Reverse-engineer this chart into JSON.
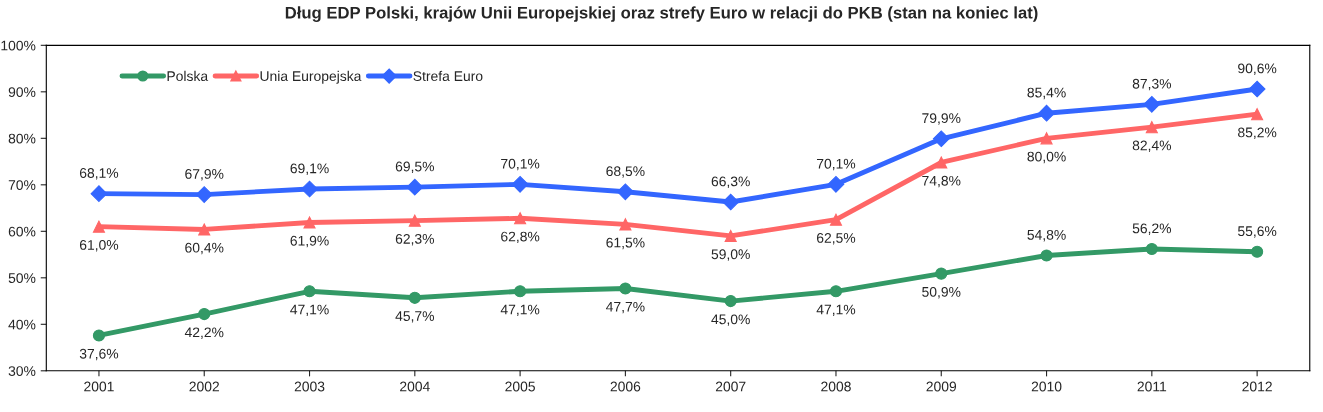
{
  "chart_data": {
    "type": "line",
    "title": "Dług EDP Polski, krajów Unii Europejskiej oraz strefy Euro w relacji do PKB (stan na koniec lat)",
    "categories": [
      "2001",
      "2002",
      "2003",
      "2004",
      "2005",
      "2006",
      "2007",
      "2008",
      "2009",
      "2010",
      "2011",
      "2012"
    ],
    "series": [
      {
        "name": "Polska",
        "color": "#339966",
        "marker": "circle",
        "values": [
          37.6,
          42.2,
          47.1,
          45.7,
          47.1,
          47.7,
          45.0,
          47.1,
          50.9,
          54.8,
          56.2,
          55.6
        ],
        "value_labels": [
          "37,6%",
          "42,2%",
          "47,1%",
          "45,7%",
          "47,1%",
          "47,7%",
          "45,0%",
          "47,1%",
          "50,9%",
          "54,8%",
          "56,2%",
          "55,6%"
        ]
      },
      {
        "name": "Unia Europejska",
        "color": "#ff6666",
        "marker": "triangle",
        "values": [
          61.0,
          60.4,
          61.9,
          62.3,
          62.8,
          61.5,
          59.0,
          62.5,
          74.8,
          80.0,
          82.4,
          85.2
        ],
        "value_labels": [
          "61,0%",
          "60,4%",
          "61,9%",
          "62,3%",
          "62,8%",
          "61,5%",
          "59,0%",
          "62,5%",
          "74,8%",
          "80,0%",
          "82,4%",
          "85,2%"
        ]
      },
      {
        "name": "Strefa Euro",
        "color": "#3366ff",
        "marker": "diamond",
        "values": [
          68.1,
          67.9,
          69.1,
          69.5,
          70.1,
          68.5,
          66.3,
          70.1,
          79.9,
          85.4,
          87.3,
          90.6
        ],
        "value_labels": [
          "68,1%",
          "67,9%",
          "69,1%",
          "69,5%",
          "70,1%",
          "68,5%",
          "66,3%",
          "70,1%",
          "79,9%",
          "85,4%",
          "87,3%",
          "90,6%"
        ]
      }
    ],
    "ylim": [
      30,
      100
    ],
    "yticks": [
      {
        "value": 30,
        "label": "30%"
      },
      {
        "value": 40,
        "label": "40%"
      },
      {
        "value": 50,
        "label": "50%"
      },
      {
        "value": 60,
        "label": "60%"
      },
      {
        "value": 70,
        "label": "70%"
      },
      {
        "value": 80,
        "label": "80%"
      },
      {
        "value": 90,
        "label": "90%"
      },
      {
        "value": 100,
        "label": "100%"
      }
    ],
    "grid": false,
    "legend": "top left",
    "line_style": "solid"
  }
}
